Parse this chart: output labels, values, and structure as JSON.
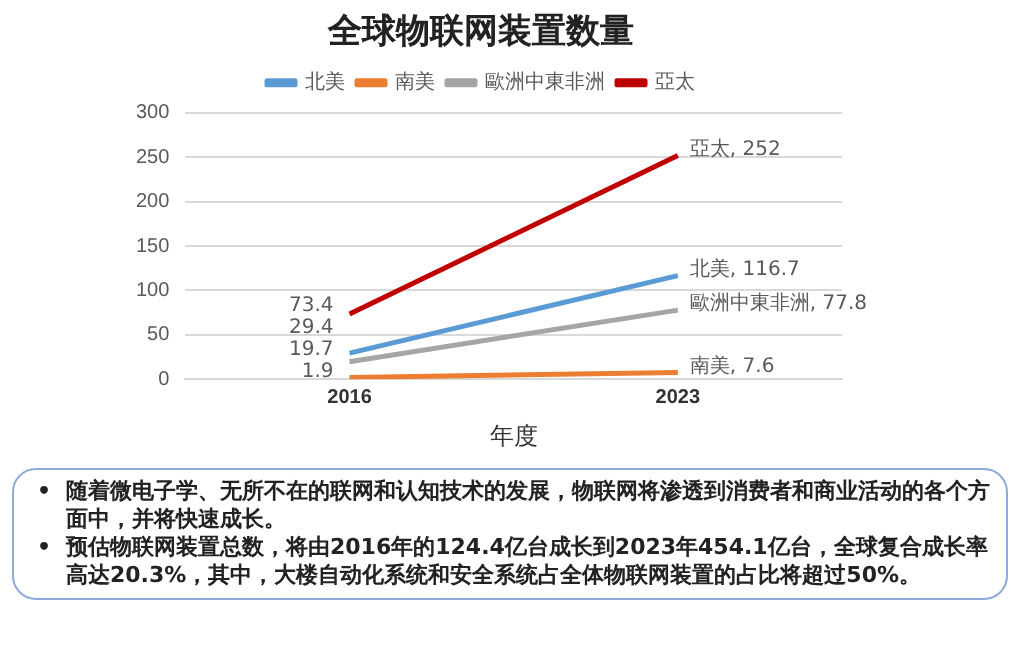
{
  "chart_data": {
    "type": "line",
    "title": "全球物联网装置数量",
    "xlabel": "年度",
    "categories": [
      "2016",
      "2023"
    ],
    "series": [
      {
        "name": "北美",
        "color": "#5b9bd5",
        "values": [
          29.4,
          116.7
        ],
        "value_labels": [
          "29.4",
          "北美, 116.7"
        ]
      },
      {
        "name": "南美",
        "color": "#ed7d31",
        "values": [
          1.9,
          7.6
        ],
        "value_labels": [
          "1.9",
          "南美, 7.6"
        ]
      },
      {
        "name": "歐洲中東非洲",
        "color": "#a5a5a5",
        "values": [
          19.7,
          77.8
        ],
        "value_labels": [
          "19.7",
          "歐洲中東非洲, 77.8"
        ]
      },
      {
        "name": "亞太",
        "color": "#c00000",
        "values": [
          73.4,
          252
        ],
        "value_labels": [
          "73.4",
          "亞太, 252"
        ]
      }
    ],
    "ylim": [
      0,
      300
    ],
    "yticks": [
      0,
      50,
      100,
      150,
      200,
      250,
      300
    ],
    "grid": "y",
    "legend": "top",
    "marker": "none",
    "line_style": "solid",
    "annotations": [
      "• 随着微电子学、无所不在的联网和认知技术的发展，物联网将渗透到消费者和商业活动的各个方面中，并将快速成长。",
      "• 预估物联网装置总数，将由2016年的124.4亿台成长到2023年454.1亿台，全球复合成长率高达20.3%，其中，大楼自动化系统和安全系统占全体物联网装置的占比将超过50%。"
    ]
  }
}
